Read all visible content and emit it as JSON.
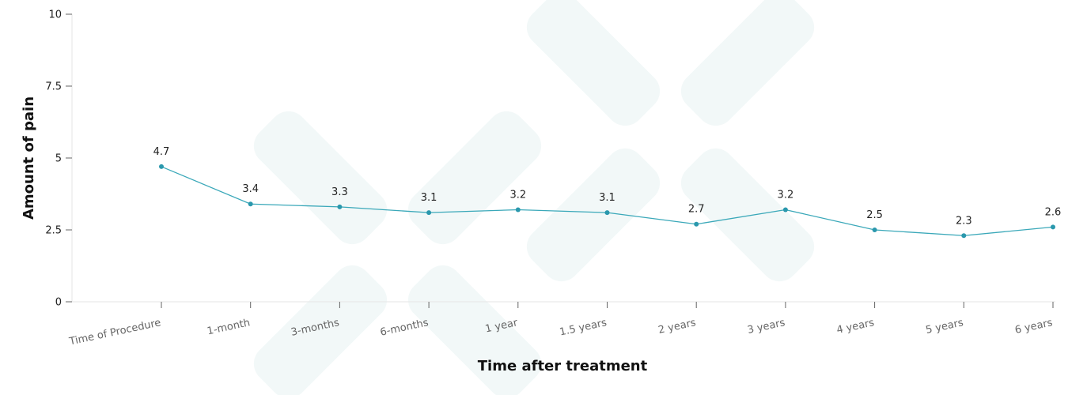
{
  "chart_data": {
    "type": "line",
    "title": "",
    "xlabel": "Time after treatment",
    "ylabel": "Amount of pain",
    "categories": [
      "Time of Procedure",
      "1-month",
      "3-months",
      "6-months",
      "1 year",
      "1.5 years",
      "2 years",
      "3 years",
      "4 years",
      "5 years",
      "6 years"
    ],
    "series": [
      {
        "values": [
          4.7,
          3.4,
          3.3,
          3.1,
          3.2,
          3.1,
          2.7,
          3.2,
          2.5,
          2.3,
          2.6
        ]
      }
    ],
    "data_labels": [
      "4.7",
      "3.4",
      "3.3",
      "3.1",
      "3.2",
      "3.1",
      "2.7",
      "3.2",
      "2.5",
      "2.3",
      "2.6"
    ],
    "y_ticks": [
      0,
      2.5,
      5,
      7.5,
      10
    ],
    "y_tick_labels": [
      "0",
      "2.5",
      "5",
      "7.5",
      "10"
    ],
    "ylim": [
      0,
      10
    ],
    "grid": false,
    "legend": "none"
  },
  "colors": {
    "line": "#3aa8b9",
    "point": "#2a98ad",
    "axis": "#666666",
    "watermark": "#f2f8f8"
  }
}
